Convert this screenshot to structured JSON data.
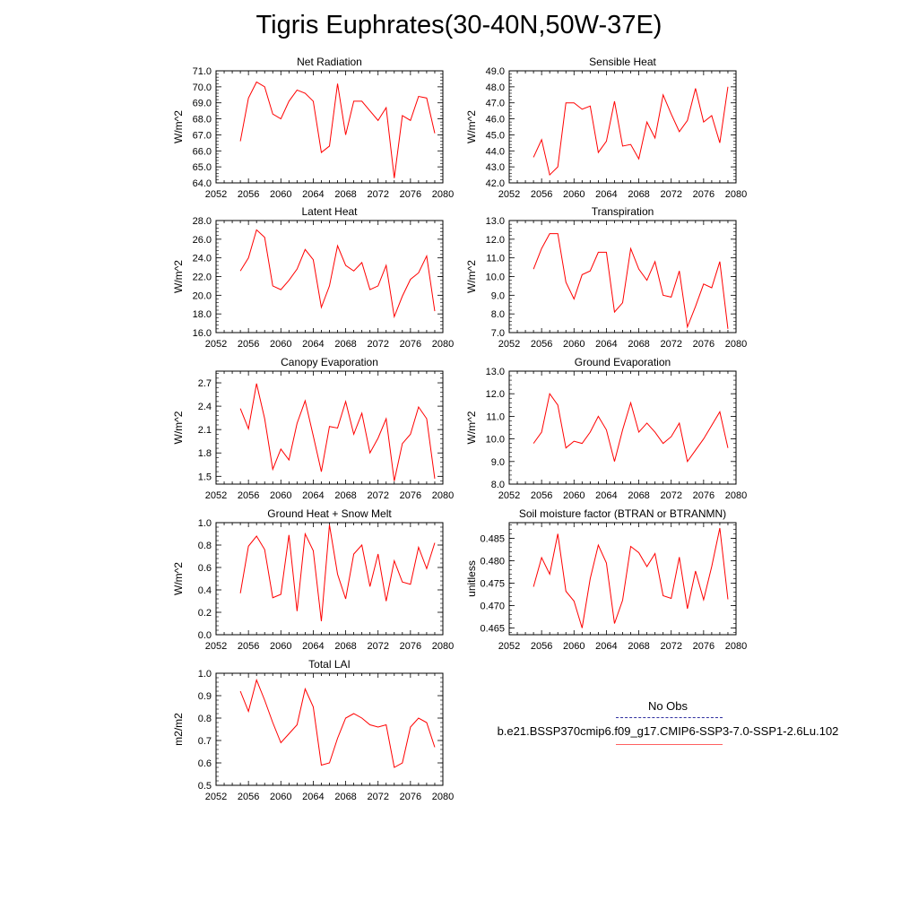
{
  "figure": {
    "title": "Tigris Euphrates(30-40N,50W-37E)"
  },
  "legend": {
    "header": "No Obs",
    "case_name": "b.e21.BSSP370cmip6.f09_g17.CMIP6-SSP3-7.0-SSP1-2.6Lu.102",
    "obs_line_color": "#3030a0",
    "case_line_color": "#ff0000"
  },
  "chart_data": [
    {
      "type": "line",
      "title": "Net Radiation",
      "xlabel": "",
      "ylabel": "W/m^2",
      "xlim": [
        2052,
        2080
      ],
      "ylim": [
        64.0,
        71.0
      ],
      "xticks": [
        "2052",
        "2056",
        "2060",
        "2064",
        "2068",
        "2072",
        "2076",
        "2080"
      ],
      "yticks": [
        "64.0",
        "65.0",
        "66.0",
        "67.0",
        "68.0",
        "69.0",
        "70.0",
        "71.0"
      ],
      "color": "#ff0000",
      "x": [
        2055,
        2056,
        2057,
        2058,
        2059,
        2060,
        2061,
        2062,
        2063,
        2064,
        2065,
        2066,
        2067,
        2068,
        2069,
        2070,
        2071,
        2072,
        2073,
        2074,
        2075,
        2076,
        2077,
        2078,
        2079
      ],
      "y": [
        66.6,
        69.3,
        70.3,
        70.0,
        68.3,
        68.0,
        69.1,
        69.8,
        69.6,
        69.1,
        65.9,
        66.3,
        70.2,
        67.0,
        69.1,
        69.1,
        68.5,
        67.9,
        68.7,
        64.3,
        68.2,
        67.9,
        69.4,
        69.3,
        67.1
      ]
    },
    {
      "type": "line",
      "title": "Sensible Heat",
      "xlabel": "",
      "ylabel": "W/m^2",
      "xlim": [
        2052,
        2080
      ],
      "ylim": [
        42.0,
        49.0
      ],
      "xticks": [
        "2052",
        "2056",
        "2060",
        "2064",
        "2068",
        "2072",
        "2076",
        "2080"
      ],
      "yticks": [
        "42.0",
        "43.0",
        "44.0",
        "45.0",
        "46.0",
        "47.0",
        "48.0",
        "49.0"
      ],
      "color": "#ff0000",
      "x": [
        2055,
        2056,
        2057,
        2058,
        2059,
        2060,
        2061,
        2062,
        2063,
        2064,
        2065,
        2066,
        2067,
        2068,
        2069,
        2070,
        2071,
        2072,
        2073,
        2074,
        2075,
        2076,
        2077,
        2078,
        2079
      ],
      "y": [
        43.6,
        44.7,
        42.5,
        43.0,
        47.0,
        47.0,
        46.6,
        46.8,
        43.9,
        44.6,
        47.1,
        44.3,
        44.4,
        43.5,
        45.8,
        44.8,
        47.5,
        46.3,
        45.2,
        45.9,
        47.9,
        45.8,
        46.2,
        44.5,
        48.0
      ]
    },
    {
      "type": "line",
      "title": "Latent Heat",
      "xlabel": "",
      "ylabel": "W/m^2",
      "xlim": [
        2052,
        2080
      ],
      "ylim": [
        16.0,
        28.0
      ],
      "xticks": [
        "2052",
        "2056",
        "2060",
        "2064",
        "2068",
        "2072",
        "2076",
        "2080"
      ],
      "yticks": [
        "16.0",
        "18.0",
        "20.0",
        "22.0",
        "24.0",
        "26.0",
        "28.0"
      ],
      "color": "#ff0000",
      "x": [
        2055,
        2056,
        2057,
        2058,
        2059,
        2060,
        2061,
        2062,
        2063,
        2064,
        2065,
        2066,
        2067,
        2068,
        2069,
        2070,
        2071,
        2072,
        2073,
        2074,
        2075,
        2076,
        2077,
        2078,
        2079
      ],
      "y": [
        22.6,
        24.0,
        27.0,
        26.2,
        21.0,
        20.6,
        21.6,
        22.8,
        24.9,
        23.8,
        18.7,
        21.0,
        25.3,
        23.2,
        22.6,
        23.5,
        20.6,
        21.0,
        23.2,
        17.7,
        19.9,
        21.7,
        22.4,
        24.2,
        18.3
      ]
    },
    {
      "type": "line",
      "title": "Transpiration",
      "xlabel": "",
      "ylabel": "W/m^2",
      "xlim": [
        2052,
        2080
      ],
      "ylim": [
        7.0,
        13.0
      ],
      "xticks": [
        "2052",
        "2056",
        "2060",
        "2064",
        "2068",
        "2072",
        "2076",
        "2080"
      ],
      "yticks": [
        "7.0",
        "8.0",
        "9.0",
        "10.0",
        "11.0",
        "12.0",
        "13.0"
      ],
      "color": "#ff0000",
      "x": [
        2055,
        2056,
        2057,
        2058,
        2059,
        2060,
        2061,
        2062,
        2063,
        2064,
        2065,
        2066,
        2067,
        2068,
        2069,
        2070,
        2071,
        2072,
        2073,
        2074,
        2075,
        2076,
        2077,
        2078,
        2079
      ],
      "y": [
        10.4,
        11.5,
        12.3,
        12.3,
        9.7,
        8.8,
        10.1,
        10.3,
        11.3,
        11.3,
        8.1,
        8.6,
        11.5,
        10.4,
        9.8,
        10.8,
        9.0,
        8.9,
        10.3,
        7.3,
        8.4,
        9.6,
        9.4,
        10.8,
        7.2
      ]
    },
    {
      "type": "line",
      "title": "Canopy Evaporation",
      "xlabel": "",
      "ylabel": "W/m^2",
      "xlim": [
        2052,
        2080
      ],
      "ylim": [
        1.4,
        2.85
      ],
      "xticks": [
        "2052",
        "2056",
        "2060",
        "2064",
        "2068",
        "2072",
        "2076",
        "2080"
      ],
      "yticks": [
        "1.5",
        "1.8",
        "2.1",
        "2.4",
        "2.7"
      ],
      "color": "#ff0000",
      "x": [
        2055,
        2056,
        2057,
        2058,
        2059,
        2060,
        2061,
        2062,
        2063,
        2064,
        2065,
        2066,
        2067,
        2068,
        2069,
        2070,
        2071,
        2072,
        2073,
        2074,
        2075,
        2076,
        2077,
        2078,
        2079
      ],
      "y": [
        2.37,
        2.11,
        2.69,
        2.24,
        1.59,
        1.85,
        1.71,
        2.18,
        2.47,
        2.02,
        1.56,
        2.14,
        2.12,
        2.46,
        2.04,
        2.31,
        1.8,
        1.99,
        2.24,
        1.44,
        1.92,
        2.04,
        2.39,
        2.24,
        1.47
      ]
    },
    {
      "type": "line",
      "title": "Ground Evaporation",
      "xlabel": "",
      "ylabel": "W/m^2",
      "xlim": [
        2052,
        2080
      ],
      "ylim": [
        8.0,
        13.0
      ],
      "xticks": [
        "2052",
        "2056",
        "2060",
        "2064",
        "2068",
        "2072",
        "2076",
        "2080"
      ],
      "yticks": [
        "8.0",
        "9.0",
        "10.0",
        "11.0",
        "12.0",
        "13.0"
      ],
      "color": "#ff0000",
      "x": [
        2055,
        2056,
        2057,
        2058,
        2059,
        2060,
        2061,
        2062,
        2063,
        2064,
        2065,
        2066,
        2067,
        2068,
        2069,
        2070,
        2071,
        2072,
        2073,
        2074,
        2075,
        2076,
        2077,
        2078,
        2079
      ],
      "y": [
        9.8,
        10.3,
        12.0,
        11.5,
        9.6,
        9.9,
        9.8,
        10.3,
        11.0,
        10.4,
        9.0,
        10.4,
        11.6,
        10.3,
        10.7,
        10.3,
        9.8,
        10.1,
        10.7,
        9.0,
        9.5,
        10.0,
        10.6,
        11.2,
        9.6
      ]
    },
    {
      "type": "line",
      "title": "Ground Heat + Snow Melt",
      "xlabel": "",
      "ylabel": "W/m^2",
      "xlim": [
        2052,
        2080
      ],
      "ylim": [
        0.0,
        1.0
      ],
      "xticks": [
        "2052",
        "2056",
        "2060",
        "2064",
        "2068",
        "2072",
        "2076",
        "2080"
      ],
      "yticks": [
        "0.0",
        "0.2",
        "0.4",
        "0.6",
        "0.8",
        "1.0"
      ],
      "color": "#ff0000",
      "x": [
        2055,
        2056,
        2057,
        2058,
        2059,
        2060,
        2061,
        2062,
        2063,
        2064,
        2065,
        2066,
        2067,
        2068,
        2069,
        2070,
        2071,
        2072,
        2073,
        2074,
        2075,
        2076,
        2077,
        2078,
        2079
      ],
      "y": [
        0.37,
        0.79,
        0.88,
        0.76,
        0.33,
        0.36,
        0.89,
        0.21,
        0.9,
        0.75,
        0.12,
        0.98,
        0.54,
        0.32,
        0.72,
        0.8,
        0.43,
        0.72,
        0.3,
        0.66,
        0.47,
        0.45,
        0.78,
        0.59,
        0.82
      ]
    },
    {
      "type": "line",
      "title": "Soil moisture factor (BTRAN or BTRANMN)",
      "xlabel": "",
      "ylabel": "unitless",
      "xlim": [
        2052,
        2080
      ],
      "ylim": [
        0.4635,
        0.4885
      ],
      "xticks": [
        "2052",
        "2056",
        "2060",
        "2064",
        "2068",
        "2072",
        "2076",
        "2080"
      ],
      "yticks": [
        "0.465",
        "0.470",
        "0.475",
        "0.480",
        "0.485"
      ],
      "color": "#ff0000",
      "x": [
        2055,
        2056,
        2057,
        2058,
        2059,
        2060,
        2061,
        2062,
        2063,
        2064,
        2065,
        2066,
        2067,
        2068,
        2069,
        2070,
        2071,
        2072,
        2073,
        2074,
        2075,
        2076,
        2077,
        2078,
        2079
      ],
      "y": [
        0.4742,
        0.4807,
        0.477,
        0.486,
        0.4732,
        0.471,
        0.465,
        0.476,
        0.4835,
        0.4795,
        0.466,
        0.4712,
        0.4832,
        0.4818,
        0.4787,
        0.4816,
        0.4722,
        0.4716,
        0.4808,
        0.4693,
        0.4777,
        0.4713,
        0.4787,
        0.4873,
        0.4714
      ]
    },
    {
      "type": "line",
      "title": "Total LAI",
      "xlabel": "",
      "ylabel": "m2/m2",
      "xlim": [
        2052,
        2080
      ],
      "ylim": [
        0.5,
        1.0
      ],
      "xticks": [
        "2052",
        "2056",
        "2060",
        "2064",
        "2068",
        "2072",
        "2076",
        "2080"
      ],
      "yticks": [
        "0.5",
        "0.6",
        "0.7",
        "0.8",
        "0.9",
        "1.0"
      ],
      "color": "#ff0000",
      "x": [
        2055,
        2056,
        2057,
        2058,
        2059,
        2060,
        2061,
        2062,
        2063,
        2064,
        2065,
        2066,
        2067,
        2068,
        2069,
        2070,
        2071,
        2072,
        2073,
        2074,
        2075,
        2076,
        2077,
        2078,
        2079
      ],
      "y": [
        0.92,
        0.83,
        0.97,
        0.88,
        0.78,
        0.69,
        0.73,
        0.77,
        0.93,
        0.85,
        0.59,
        0.6,
        0.71,
        0.8,
        0.82,
        0.8,
        0.77,
        0.76,
        0.77,
        0.58,
        0.6,
        0.76,
        0.8,
        0.78,
        0.67
      ]
    }
  ]
}
